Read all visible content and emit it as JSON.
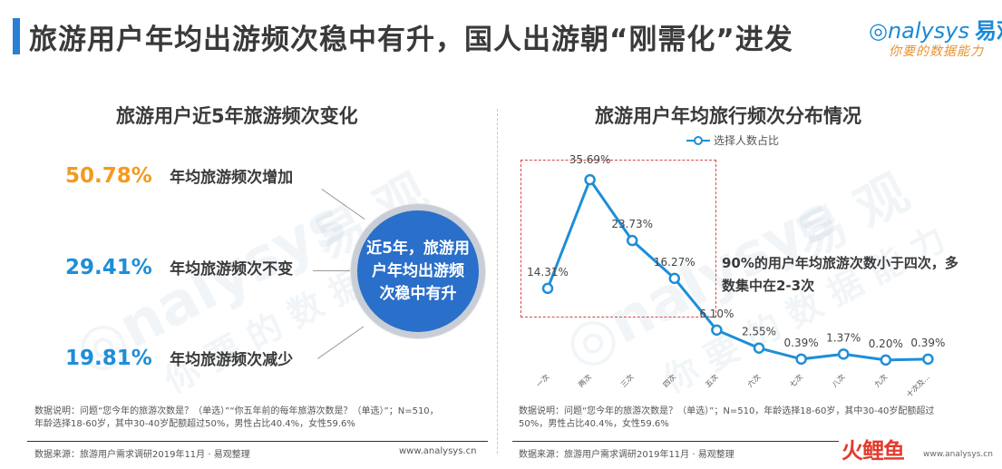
{
  "header": {
    "title": "旅游用户年均出游频次稳中有升，国人出游朝“刚需化”进发",
    "logo_text": "nalysys",
    "logo_cn": "易观",
    "logo_tagline": "你要的数据能力",
    "accent_color": "#2a7fd4"
  },
  "left_panel": {
    "title": "旅游用户近5年旅游频次变化",
    "stats": [
      {
        "value": "50.78%",
        "label": "年均旅游频次增加",
        "color": "#f39a1e"
      },
      {
        "value": "29.41%",
        "label": "年均旅游频次不变",
        "color": "#1e8ed8"
      },
      {
        "value": "19.81%",
        "label": "年均旅游频次减少",
        "color": "#1e8ed8"
      }
    ],
    "circle_text": "近5年，旅游用户年均出游频次稳中有升",
    "note": "数据说明：问题“您今年的旅游次数是？（单选）”“你五年前的每年旅游次数是？（单选）”；N=510，年龄选择18-60岁，其中30-40岁配额超过50%，男性占比40.4%，女性59.6%",
    "source": "数据来源：旅游用户需求调研2019年11月 · 易观整理",
    "url": "www.analysys.cn"
  },
  "right_panel": {
    "title": "旅游用户年均旅行频次分布情况",
    "annotation": "90%的用户年均旅游次数小于四次，多数集中在2-3次",
    "note": "数据说明：问题“您今年的旅游次数是？（单选）”；N=510，年龄选择18-60岁，其中30-40岁配额超过50%，男性占比40.4%，女性59.6%",
    "source": "数据来源：旅游用户需求调研2019年11月 · 易观整理"
  },
  "chart_data": {
    "type": "line",
    "title": "旅游用户年均旅行频次分布情况",
    "categories": [
      "一次",
      "两次",
      "三次",
      "四次",
      "五次",
      "六次",
      "七次",
      "八次",
      "九次",
      "十次及..."
    ],
    "series": [
      {
        "name": "选择人数占比",
        "values": [
          14.31,
          35.69,
          23.73,
          16.27,
          6.1,
          2.55,
          0.39,
          1.37,
          0.2,
          0.39
        ],
        "labels": [
          "14.31%",
          "35.69%",
          "23.73%",
          "16.27%",
          "6.10%",
          "2.55%",
          "0.39%",
          "1.37%",
          "0.20%",
          "0.39%"
        ],
        "color": "#1e8ed8"
      }
    ],
    "legend": "top-center",
    "grid": false
  },
  "footer": {
    "corner_logo": "火鲤鱼",
    "corner_url": "www.analysys.cn"
  }
}
